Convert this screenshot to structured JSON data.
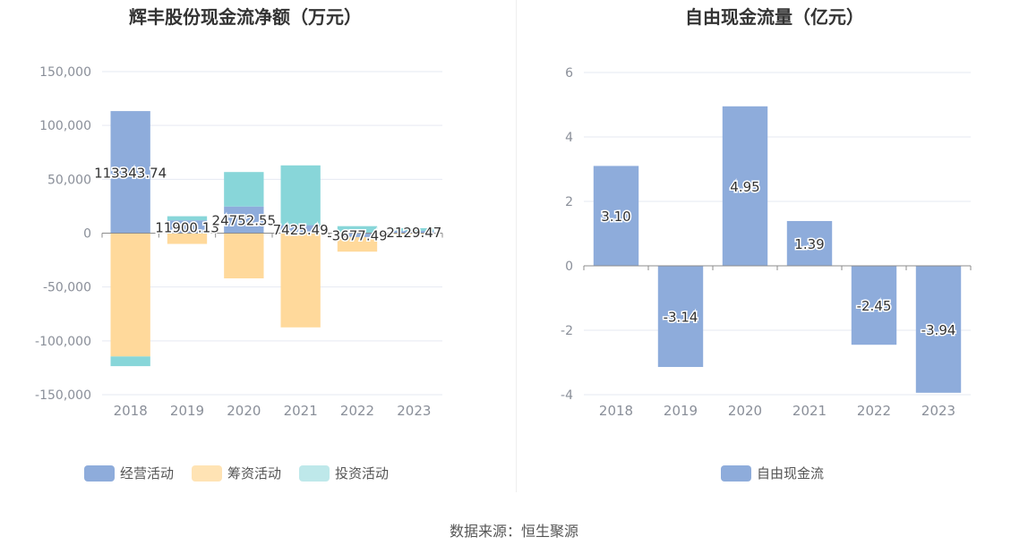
{
  "colors": {
    "operating": "#8eacdb",
    "financing": "#ffd99b",
    "investing": "#88d6d9",
    "free_cf": "#8eacdb",
    "grid": "#e6e9f2",
    "axis_text": "#8a8f99",
    "title": "#333333"
  },
  "source_text": "数据来源：恒生聚源",
  "chart_data": [
    {
      "type": "bar",
      "stacked": true,
      "title": "辉丰股份现金流净额（万元）",
      "categories": [
        "2018",
        "2019",
        "2020",
        "2021",
        "2022",
        "2023"
      ],
      "ylim": [
        -150000,
        150000
      ],
      "yticks": [
        150000,
        100000,
        50000,
        0,
        -50000,
        -100000,
        -150000
      ],
      "ytick_labels": [
        "150,000",
        "100,000",
        "50,000",
        "0",
        "-50,000",
        "-100,000",
        "-150,000"
      ],
      "series": [
        {
          "name": "经营活动",
          "color_key": "operating",
          "values": [
            113343.74,
            11900.13,
            24752.55,
            7425.49,
            -3677.49,
            2129.47
          ]
        },
        {
          "name": "筹资活动",
          "color_key": "financing",
          "values": [
            -114500,
            -10000,
            -42000,
            -87500,
            -13500,
            -1000
          ]
        },
        {
          "name": "投资活动",
          "color_key": "investing",
          "values": [
            -9000,
            3800,
            32000,
            55500,
            6500,
            2500
          ]
        }
      ],
      "data_labels": [
        "113343.74",
        "11900.13",
        "24752.55",
        "7425.49",
        "-3677.49",
        "2129.47"
      ],
      "legend": [
        "经营活动",
        "筹资活动",
        "投资活动"
      ],
      "grid": true
    },
    {
      "type": "bar",
      "title": "自由现金流量（亿元）",
      "categories": [
        "2018",
        "2019",
        "2020",
        "2021",
        "2022",
        "2023"
      ],
      "ylim": [
        -4,
        6
      ],
      "yticks": [
        6,
        4,
        2,
        0,
        -2,
        -4
      ],
      "ytick_labels": [
        "6",
        "4",
        "2",
        "0",
        "-2",
        "-4"
      ],
      "series": [
        {
          "name": "自由现金流",
          "color_key": "free_cf",
          "values": [
            3.1,
            -3.14,
            4.95,
            1.39,
            -2.45,
            -3.94
          ]
        }
      ],
      "data_labels": [
        "3.10",
        "-3.14",
        "4.95",
        "1.39",
        "-2.45",
        "-3.94"
      ],
      "legend": [
        "自由现金流"
      ],
      "grid": true
    }
  ]
}
